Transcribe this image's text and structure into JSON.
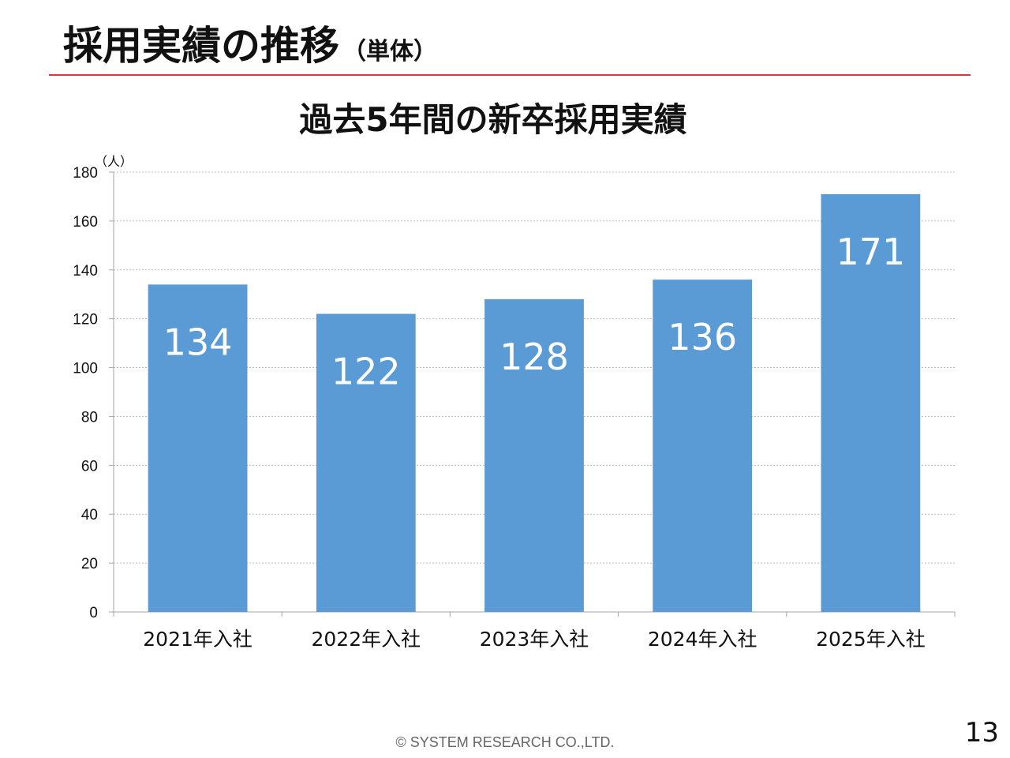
{
  "slide": {
    "title": "採用実績の推移",
    "subtitle": "（単体）",
    "copyright": "© SYSTEM RESEARCH CO.,LTD.",
    "page_number": "13"
  },
  "colors": {
    "bar": "#5b9bd5",
    "rule": "#d9363e",
    "grid": "#bfbfbf",
    "axis": "#a6a6a6"
  },
  "chart_data": {
    "type": "bar",
    "title": "過去5年間の新卒採用実績",
    "ylabel": "（人）",
    "xlabel": "",
    "ylim": [
      0,
      180
    ],
    "yticks": [
      0,
      20,
      40,
      60,
      80,
      100,
      120,
      140,
      160,
      180
    ],
    "grid": true,
    "categories": [
      "2021年入社",
      "2022年入社",
      "2023年入社",
      "2024年入社",
      "2025年入社"
    ],
    "values": [
      134,
      122,
      128,
      136,
      171
    ],
    "data_labels": [
      "134",
      "122",
      "128",
      "136",
      "171"
    ]
  }
}
